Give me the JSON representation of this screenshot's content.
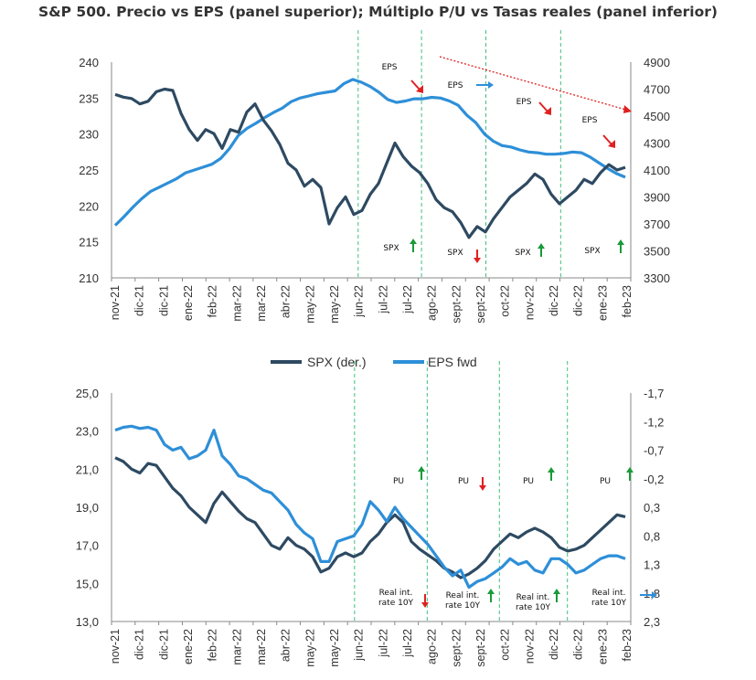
{
  "title": "S&P 500. Precio vs EPS (panel superior); Múltiplo P/U vs Tasas reales (panel inferior)",
  "colors": {
    "spx": "#2e4a62",
    "eps": "#2e8fd8",
    "up": "#1a9a3a",
    "down": "#e02020",
    "vline": "#3fbf7f",
    "trend": "#e02020"
  },
  "x_labels": [
    "nov-21",
    "dic-21",
    "dic-21",
    "ene-22",
    "feb-22",
    "mar-22",
    "mar-22",
    "abr-22",
    "may-22",
    "may-22",
    "jun-22",
    "jul-22",
    "jul-22",
    "ago-22",
    "sept-22",
    "sept-22",
    "oct-22",
    "nov-22",
    "dic-22",
    "dic-22",
    "ene-23",
    "feb-23"
  ],
  "legend": {
    "spx": "SPX (der.)",
    "eps": "EPS fwd"
  },
  "chart_data": [
    {
      "type": "line",
      "panel": "top",
      "left_axis": {
        "ticks": [
          240,
          235,
          230,
          225,
          220,
          215,
          210
        ],
        "ylim": [
          210,
          240
        ]
      },
      "right_axis": {
        "ticks": [
          4900,
          4700,
          4500,
          4300,
          4100,
          3900,
          3700,
          3500,
          3300
        ],
        "ylim": [
          3300,
          4900
        ]
      },
      "series": [
        {
          "name": "EPS fwd",
          "axis": "left",
          "values": [
            217.3,
            218.5,
            219.8,
            221.0,
            222.0,
            222.6,
            223.2,
            223.8,
            224.6,
            225.0,
            225.4,
            225.8,
            226.6,
            228.0,
            229.8,
            230.8,
            231.5,
            232.3,
            233.0,
            233.6,
            234.5,
            235.0,
            235.3,
            235.6,
            235.8,
            236.0,
            237.0,
            237.6,
            237.2,
            236.6,
            235.8,
            234.8,
            234.4,
            234.6,
            234.9,
            234.9,
            235.1,
            235.0,
            234.6,
            234.0,
            232.6,
            231.6,
            230.0,
            229.0,
            228.4,
            228.2,
            227.8,
            227.5,
            227.4,
            227.2,
            227.2,
            227.3,
            227.5,
            227.4,
            226.8,
            226.0,
            225.2,
            224.5,
            224.0
          ]
        },
        {
          "name": "SPX (der.)",
          "axis": "right",
          "values": [
            4660,
            4640,
            4630,
            4590,
            4610,
            4680,
            4700,
            4690,
            4520,
            4400,
            4320,
            4400,
            4370,
            4260,
            4400,
            4380,
            4530,
            4590,
            4470,
            4390,
            4290,
            4150,
            4100,
            3980,
            4030,
            3970,
            3700,
            3820,
            3900,
            3770,
            3800,
            3920,
            4000,
            4150,
            4300,
            4200,
            4130,
            4080,
            4000,
            3880,
            3820,
            3790,
            3710,
            3600,
            3680,
            3640,
            3740,
            3820,
            3900,
            3950,
            4000,
            4070,
            4030,
            3920,
            3850,
            3900,
            3950,
            4030,
            4000,
            4080,
            4140,
            4100,
            4120
          ]
        }
      ],
      "annotations": [
        {
          "text": "EPS",
          "arrow": "down",
          "color": "red"
        },
        {
          "text": "EPS",
          "arrow": "right",
          "color": "blue"
        },
        {
          "text": "EPS",
          "arrow": "down",
          "color": "red"
        },
        {
          "text": "EPS",
          "arrow": "down",
          "color": "red"
        },
        {
          "text": "SPX",
          "arrow": "up",
          "color": "green"
        },
        {
          "text": "SPX",
          "arrow": "down",
          "color": "red"
        },
        {
          "text": "SPX",
          "arrow": "up",
          "color": "green"
        },
        {
          "text": "SPX",
          "arrow": "up",
          "color": "green"
        }
      ]
    },
    {
      "type": "line",
      "panel": "bottom",
      "left_axis": {
        "ticks": [
          "25,0",
          "23,0",
          "21,0",
          "19,0",
          "17,0",
          "15,0",
          "13,0"
        ],
        "ylim": [
          13,
          25
        ]
      },
      "right_axis": {
        "ticks": [
          "-1,7",
          "-1,2",
          "-0,7",
          "-0,2",
          "0,3",
          "0,8",
          "1,3",
          "1,8",
          "2,3"
        ],
        "ylim": [
          -1.7,
          2.3
        ],
        "inverted": true
      },
      "series": [
        {
          "name": "PU",
          "axis": "left",
          "values": [
            21.6,
            21.4,
            21.0,
            20.8,
            21.3,
            21.2,
            20.6,
            20.0,
            19.6,
            19.0,
            18.6,
            18.2,
            19.2,
            19.8,
            19.3,
            18.8,
            18.4,
            18.2,
            17.6,
            17.0,
            16.8,
            17.4,
            17.0,
            16.8,
            16.4,
            15.6,
            15.8,
            16.4,
            16.6,
            16.4,
            16.6,
            17.2,
            17.6,
            18.2,
            18.6,
            18.2,
            17.2,
            16.8,
            16.5,
            16.2,
            15.8,
            15.6,
            15.3,
            15.5,
            15.8,
            16.2,
            16.8,
            17.2,
            17.6,
            17.4,
            17.7,
            17.9,
            17.7,
            17.4,
            16.9,
            16.7,
            16.8,
            17.0,
            17.4,
            17.8,
            18.2,
            18.6,
            18.5
          ]
        },
        {
          "name": "Real int. rate 10Y",
          "axis": "right",
          "values": [
            -1.05,
            -1.1,
            -1.12,
            -1.08,
            -1.1,
            -1.05,
            -0.8,
            -0.7,
            -0.75,
            -0.55,
            -0.6,
            -0.7,
            -1.05,
            -0.6,
            -0.45,
            -0.25,
            -0.2,
            -0.1,
            0.0,
            0.05,
            0.2,
            0.35,
            0.6,
            0.75,
            0.85,
            1.25,
            1.25,
            0.9,
            0.85,
            0.8,
            0.6,
            0.2,
            0.35,
            0.55,
            0.3,
            0.5,
            0.65,
            0.8,
            0.95,
            1.15,
            1.35,
            1.5,
            1.4,
            1.7,
            1.6,
            1.55,
            1.45,
            1.35,
            1.2,
            1.3,
            1.25,
            1.4,
            1.45,
            1.2,
            1.2,
            1.3,
            1.45,
            1.4,
            1.3,
            1.2,
            1.15,
            1.15,
            1.2
          ]
        }
      ],
      "annotations": [
        {
          "text": "PU",
          "arrow": "up",
          "color": "green"
        },
        {
          "text": "PU",
          "arrow": "down",
          "color": "red"
        },
        {
          "text": "PU",
          "arrow": "up",
          "color": "green"
        },
        {
          "text": "PU",
          "arrow": "up",
          "color": "green"
        },
        {
          "text": "Real int.\nrate 10Y",
          "arrow": "down",
          "color": "red"
        },
        {
          "text": "Real int.\nrate 10Y",
          "arrow": "up",
          "color": "green"
        },
        {
          "text": "Real int.\nrate 10Y",
          "arrow": "up",
          "color": "green"
        },
        {
          "text": "Real int.\nrate 10Y",
          "arrow": "right",
          "color": "blue"
        }
      ]
    }
  ]
}
